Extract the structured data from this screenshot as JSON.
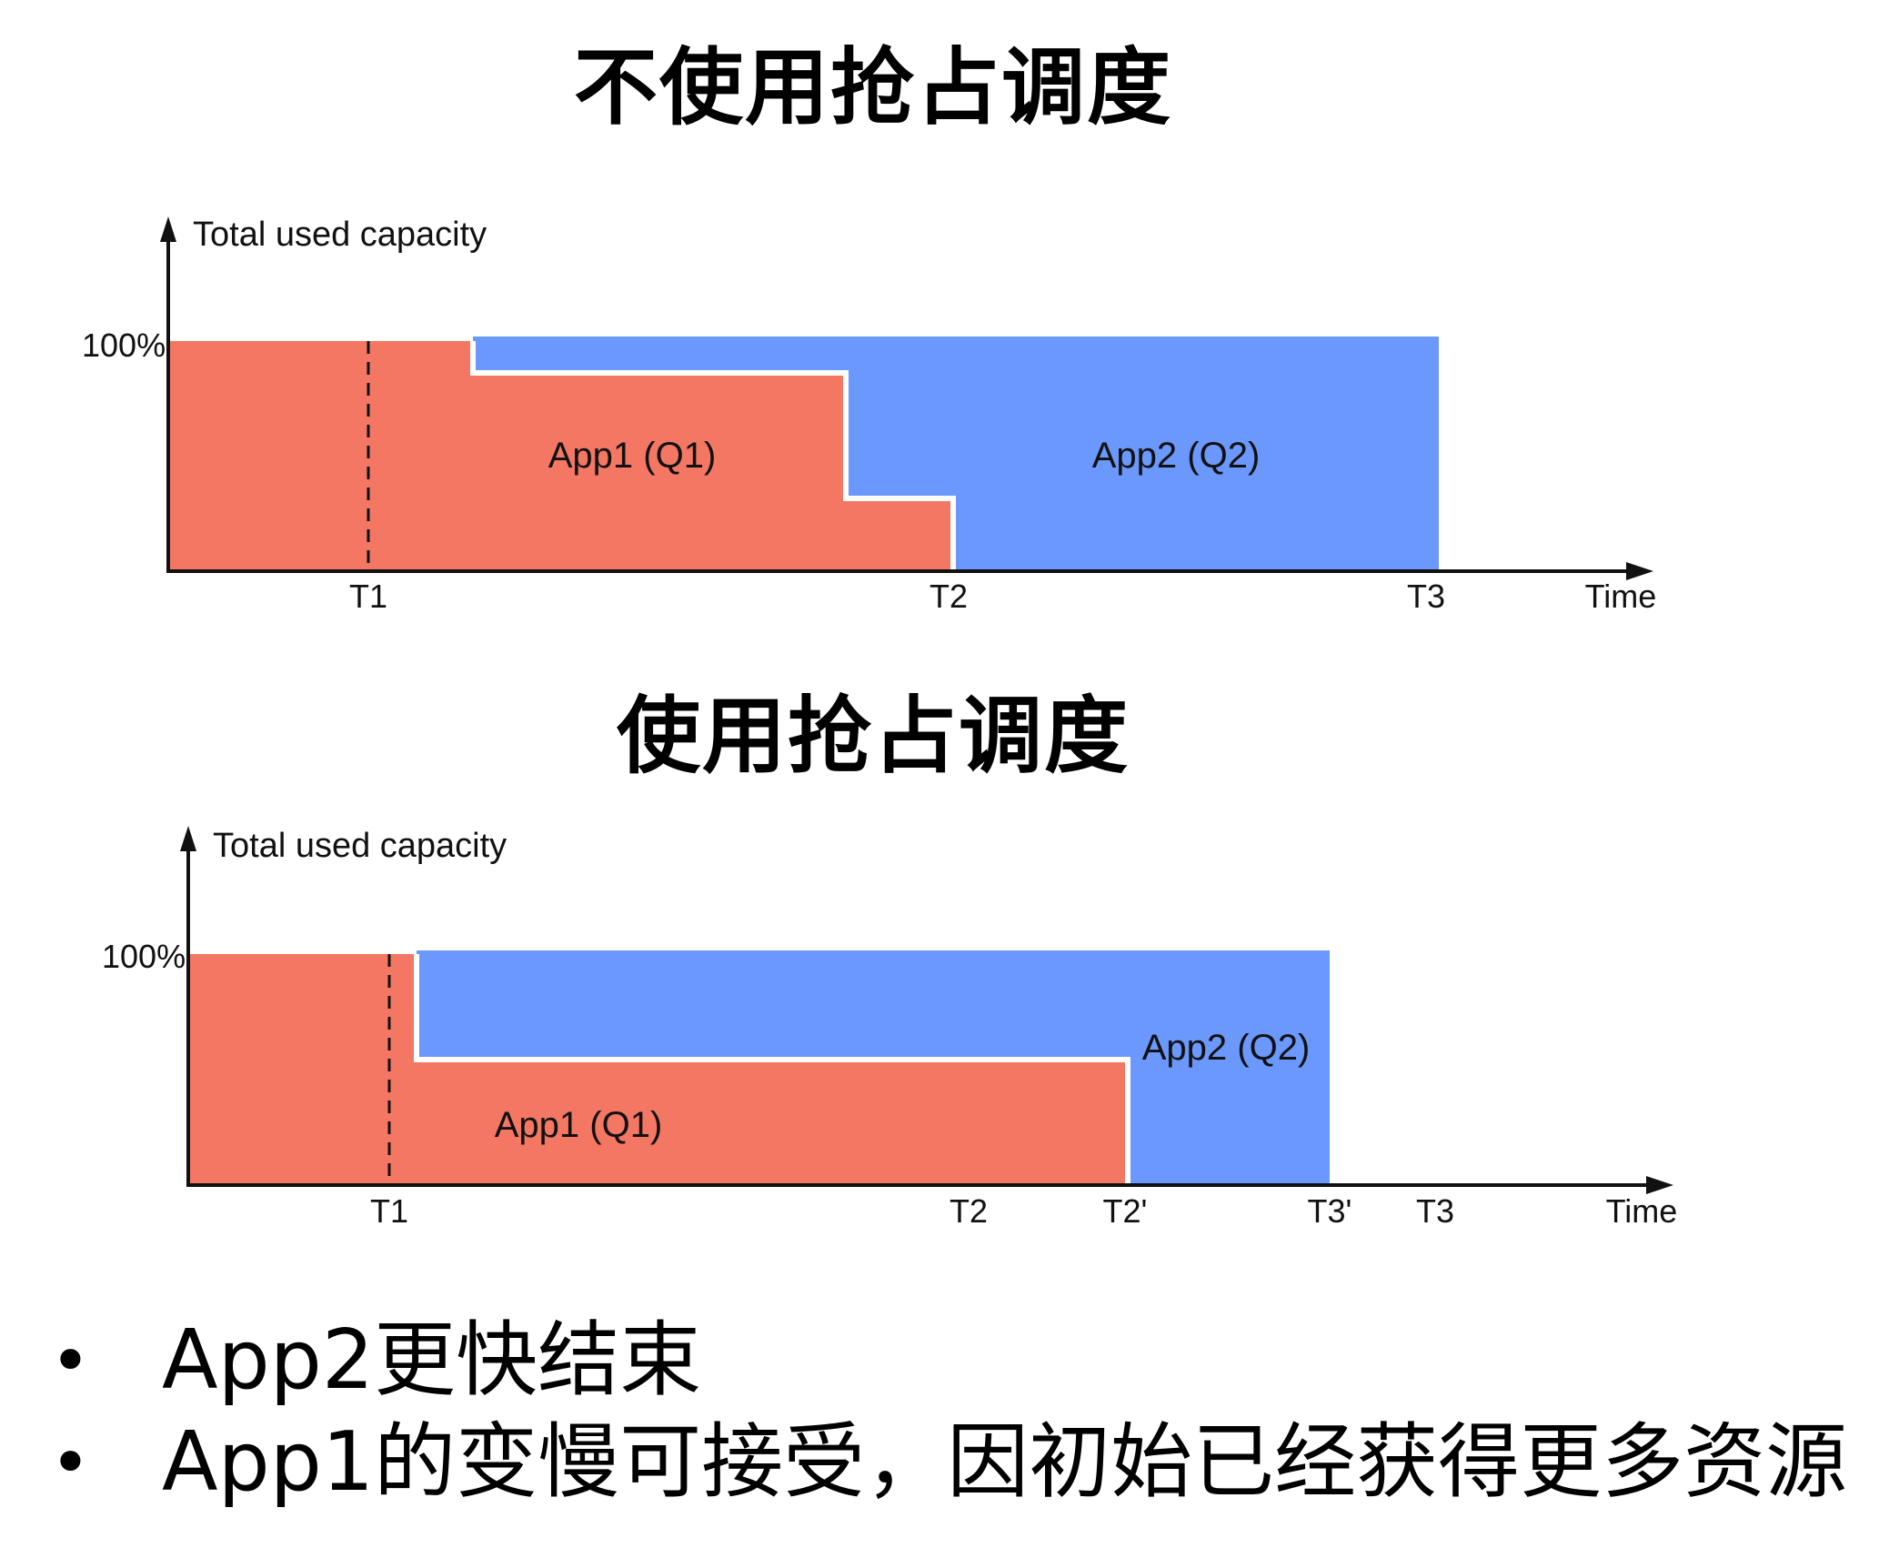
{
  "titles": {
    "without_preemption": "不使用抢占调度",
    "with_preemption": "使用抢占调度"
  },
  "colors": {
    "app1": "#F47764",
    "app2": "#6A98FC",
    "axis": "#111111"
  },
  "chart_data": [
    {
      "type": "area",
      "title": "不使用抢占调度",
      "ylabel": "Total used capacity",
      "xlabel": "Time",
      "y_tick": "100%",
      "x_ticks": [
        "T1",
        "T2",
        "T3"
      ],
      "series": [
        {
          "name": "App1 (Q1)",
          "label": "App1 (Q1)"
        },
        {
          "name": "App2 (Q2)",
          "label": "App2 (Q2)"
        }
      ]
    },
    {
      "type": "area",
      "title": "使用抢占调度",
      "ylabel": "Total used capacity",
      "xlabel": "Time",
      "y_tick": "100%",
      "x_ticks": [
        "T1",
        "T2",
        "T2'",
        "T3'",
        "T3"
      ],
      "series": [
        {
          "name": "App1 (Q1)",
          "label": "App1 (Q1)"
        },
        {
          "name": "App2 (Q2)",
          "label": "App2 (Q2)"
        }
      ]
    }
  ],
  "bullets": [
    "App2更快结束",
    "App1的变慢可接受，因初始已经获得更多资源"
  ]
}
